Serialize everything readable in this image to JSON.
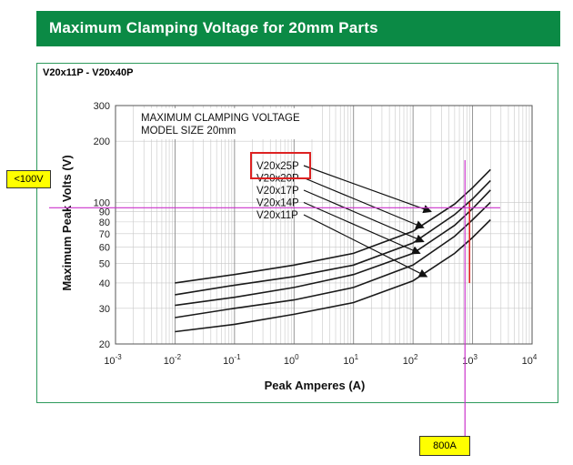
{
  "header": {
    "title": "Maximum Clamping Voltage for 20mm Parts",
    "bg_color": "#0b8a45"
  },
  "panel": {
    "range_label": "V20x11P - V20x40P",
    "border_color": "#2e9a5c"
  },
  "chart_data": {
    "type": "line",
    "title_lines": [
      "MAXIMUM CLAMPING VOLTAGE",
      "MODEL SIZE 20mm"
    ],
    "xlabel": "Peak Amperes (A)",
    "ylabel": "Maximum Peak Volts (V)",
    "x_scale": "log",
    "y_scale": "log",
    "xlim": [
      0.001,
      10000
    ],
    "ylim": [
      20,
      300
    ],
    "x_ticks": [
      {
        "value": 0.001,
        "base": "10",
        "exp": "-3"
      },
      {
        "value": 0.01,
        "base": "10",
        "exp": "-2"
      },
      {
        "value": 0.1,
        "base": "10",
        "exp": "-1"
      },
      {
        "value": 1,
        "base": "10",
        "exp": "0"
      },
      {
        "value": 10,
        "base": "10",
        "exp": "1"
      },
      {
        "value": 100,
        "base": "10",
        "exp": "2"
      },
      {
        "value": 1000,
        "base": "10",
        "exp": "3"
      },
      {
        "value": 10000,
        "base": "10",
        "exp": "4"
      }
    ],
    "y_ticks": [
      {
        "value": 20,
        "label": "20"
      },
      {
        "value": 30,
        "label": "30"
      },
      {
        "value": 40,
        "label": "40"
      },
      {
        "value": 50,
        "label": "50"
      },
      {
        "value": 60,
        "label": "60"
      },
      {
        "value": 70,
        "label": "70"
      },
      {
        "value": 80,
        "label": "80"
      },
      {
        "value": 90,
        "label": "90"
      },
      {
        "value": 100,
        "label": "100"
      },
      {
        "value": 200,
        "label": "200"
      },
      {
        "value": 300,
        "label": "300"
      }
    ],
    "grid": true,
    "series": [
      {
        "name": "V20x25P",
        "x": [
          0.01,
          0.1,
          1,
          10,
          100,
          500,
          1000,
          2000
        ],
        "y": [
          40,
          44,
          49,
          56,
          72,
          98,
          118,
          145
        ],
        "arrow_to": [
          200,
          90
        ]
      },
      {
        "name": "V20x20P",
        "x": [
          0.01,
          0.1,
          1,
          10,
          100,
          500,
          1000,
          2000
        ],
        "y": [
          35,
          39,
          43,
          49,
          63,
          87,
          104,
          128
        ],
        "arrow_to": [
          150,
          75
        ]
      },
      {
        "name": "V20x17P",
        "x": [
          0.01,
          0.1,
          1,
          10,
          100,
          500,
          1000,
          2000
        ],
        "y": [
          31,
          34,
          38,
          44,
          56,
          77,
          93,
          115
        ],
        "arrow_to": [
          150,
          64
        ]
      },
      {
        "name": "V20x14P",
        "x": [
          0.01,
          0.1,
          1,
          10,
          100,
          500,
          1000,
          2000
        ],
        "y": [
          27,
          30,
          33,
          38,
          49,
          68,
          82,
          100
        ],
        "arrow_to": [
          130,
          56
        ]
      },
      {
        "name": "V20x11P",
        "x": [
          0.01,
          0.1,
          1,
          10,
          100,
          500,
          1000,
          2000
        ],
        "y": [
          23,
          25,
          28,
          32,
          41,
          56,
          67,
          82
        ],
        "arrow_to": [
          170,
          43
        ]
      }
    ],
    "highlighted_series": "V20x25P",
    "annotations": [
      {
        "label": "<100V",
        "kind": "horizontal",
        "value": 100,
        "color": "#cc33cc"
      },
      {
        "label": "800A",
        "kind": "vertical",
        "value": 800,
        "color": "#cc33cc"
      }
    ],
    "marker_line": {
      "x": 800,
      "y_from": 40,
      "y_to": 100,
      "color": "#dd2222"
    },
    "callout_color": "#ffff00",
    "highlight_box_color": "#dd2222"
  }
}
